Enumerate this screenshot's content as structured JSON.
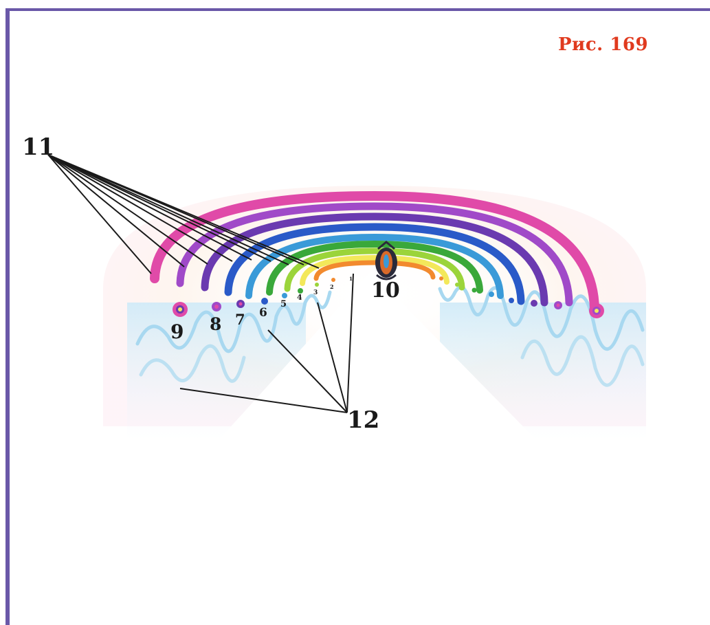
{
  "figure": {
    "caption": "Рис. 169",
    "labels": {
      "l1": "1",
      "l2": "2",
      "l3": "3",
      "l4": "4",
      "l5": "5",
      "l6": "6",
      "l7": "7",
      "l8": "8",
      "l9": "9",
      "l10": "10",
      "l11": "11",
      "l12": "12"
    },
    "colors": {
      "frame": "#6a58a8",
      "caption": "#e03a1e",
      "ring_1": "#f28a2e",
      "ring_2": "#f3e85a",
      "ring_3": "#9bd43a",
      "ring_4": "#3aa83a",
      "ring_5": "#3a9ad8",
      "ring_6": "#2a5ac8",
      "ring_7": "#6a3ab0",
      "ring_8": "#a04ac8",
      "ring_9": "#e04aa8",
      "waves": "#a8d8f0"
    }
  }
}
